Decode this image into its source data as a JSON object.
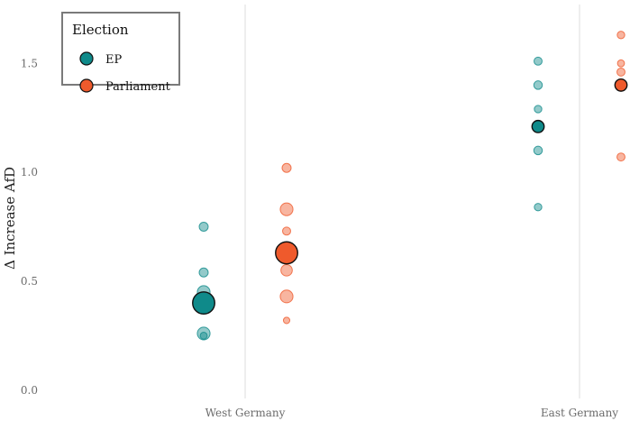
{
  "chart_data": {
    "type": "scatter",
    "title": "",
    "ylabel": "Δ Increase AfD",
    "xlabel": "",
    "categories": [
      "West Germany",
      "East Germany"
    ],
    "ylim": [
      -0.03,
      1.77
    ],
    "yticks": [
      0.0,
      0.5,
      1.0,
      1.5
    ],
    "ytick_labels": [
      "0.0",
      "0.5",
      "1.0",
      "1.5"
    ],
    "grid": "vertical at categories",
    "legend": {
      "title": "Election",
      "position": "top-left",
      "entries": [
        "EP",
        "Parliament"
      ]
    },
    "colors": {
      "EP": "#0f8a8a",
      "Parliament": "#ef5a2c"
    },
    "series": [
      {
        "name": "EP",
        "points": [
          {
            "category": "West Germany",
            "y": 0.75,
            "weight": 1.0,
            "summary": false
          },
          {
            "category": "West Germany",
            "y": 0.54,
            "weight": 1.0,
            "summary": false
          },
          {
            "category": "West Germany",
            "y": 0.45,
            "weight": 2.0,
            "summary": false
          },
          {
            "category": "West Germany",
            "y": 0.26,
            "weight": 2.0,
            "summary": false
          },
          {
            "category": "West Germany",
            "y": 0.25,
            "weight": 0.6,
            "summary": false
          },
          {
            "category": "West Germany",
            "y": 0.4,
            "weight": 6.0,
            "summary": true
          },
          {
            "category": "East Germany",
            "y": 1.51,
            "weight": 0.8,
            "summary": false
          },
          {
            "category": "East Germany",
            "y": 1.4,
            "weight": 0.9,
            "summary": false
          },
          {
            "category": "East Germany",
            "y": 1.29,
            "weight": 0.7,
            "summary": false
          },
          {
            "category": "East Germany",
            "y": 1.1,
            "weight": 0.9,
            "summary": false
          },
          {
            "category": "East Germany",
            "y": 0.84,
            "weight": 0.7,
            "summary": false
          },
          {
            "category": "East Germany",
            "y": 1.21,
            "weight": 1.8,
            "summary": true
          }
        ]
      },
      {
        "name": "Parliament",
        "points": [
          {
            "category": "West Germany",
            "y": 1.02,
            "weight": 1.0,
            "summary": false
          },
          {
            "category": "West Germany",
            "y": 0.83,
            "weight": 2.0,
            "summary": false
          },
          {
            "category": "West Germany",
            "y": 0.73,
            "weight": 0.8,
            "summary": false
          },
          {
            "category": "West Germany",
            "y": 0.55,
            "weight": 1.6,
            "summary": false
          },
          {
            "category": "West Germany",
            "y": 0.43,
            "weight": 2.0,
            "summary": false
          },
          {
            "category": "West Germany",
            "y": 0.32,
            "weight": 0.5,
            "summary": false
          },
          {
            "category": "West Germany",
            "y": 0.63,
            "weight": 6.0,
            "summary": true
          },
          {
            "category": "East Germany",
            "y": 1.63,
            "weight": 0.7,
            "summary": false
          },
          {
            "category": "East Germany",
            "y": 1.5,
            "weight": 0.6,
            "summary": false
          },
          {
            "category": "East Germany",
            "y": 1.46,
            "weight": 0.8,
            "summary": false
          },
          {
            "category": "East Germany",
            "y": 1.07,
            "weight": 0.8,
            "summary": false
          },
          {
            "category": "East Germany",
            "y": 1.4,
            "weight": 1.8,
            "summary": true
          }
        ]
      }
    ]
  }
}
